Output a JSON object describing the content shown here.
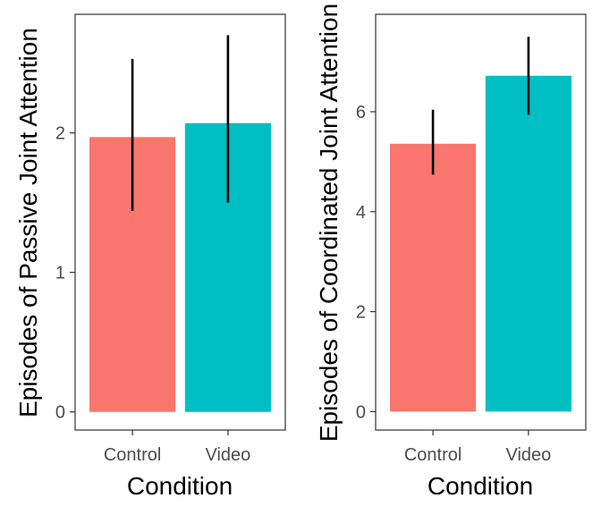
{
  "chart_data": [
    {
      "type": "bar",
      "categories": [
        "Control",
        "Video"
      ],
      "values": [
        1.97,
        2.07
      ],
      "error_low": [
        1.44,
        1.5
      ],
      "error_high": [
        2.53,
        2.7
      ],
      "colors": [
        "#F8766D",
        "#00BFC4"
      ],
      "xlabel": "Condition",
      "ylabel": "Episodes of Passive Joint Attention",
      "ylim": [
        -0.13,
        2.85
      ],
      "yticks": [
        0,
        1,
        2
      ],
      "grid": false,
      "legend": "none"
    },
    {
      "type": "bar",
      "categories": [
        "Control",
        "Video"
      ],
      "values": [
        5.36,
        6.72
      ],
      "error_low": [
        4.74,
        5.94
      ],
      "error_high": [
        6.04,
        7.5
      ],
      "colors": [
        "#F8766D",
        "#00BFC4"
      ],
      "xlabel": "Condition",
      "ylabel": "Episodes of Coordinated Joint Attention",
      "ylim": [
        -0.37,
        7.95
      ],
      "yticks": [
        0,
        2,
        4,
        6
      ],
      "grid": false,
      "legend": "none"
    }
  ]
}
